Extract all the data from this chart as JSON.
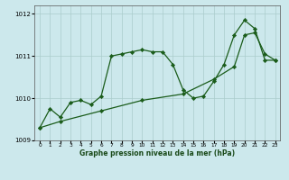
{
  "xlabel": "Graphe pression niveau de la mer (hPa)",
  "background_color": "#cce8ec",
  "grid_color": "#aacccc",
  "line_color": "#1a5c1a",
  "xlim": [
    -0.5,
    23.5
  ],
  "ylim": [
    1009.0,
    1012.2
  ],
  "yticks": [
    1009,
    1010,
    1011,
    1012
  ],
  "xticks": [
    0,
    1,
    2,
    3,
    4,
    5,
    6,
    7,
    8,
    9,
    10,
    11,
    12,
    13,
    14,
    15,
    16,
    17,
    18,
    19,
    20,
    21,
    22,
    23
  ],
  "series1_x": [
    0,
    1,
    2,
    3,
    4,
    5,
    6,
    7,
    8,
    9,
    10,
    11,
    12,
    13,
    14,
    15,
    16,
    17,
    18,
    19,
    20,
    21,
    22,
    23
  ],
  "series1_y": [
    1009.3,
    1009.75,
    1009.55,
    1009.9,
    1009.95,
    1009.85,
    1010.05,
    1011.0,
    1011.05,
    1011.1,
    1011.15,
    1011.1,
    1011.1,
    1010.8,
    1010.2,
    1010.0,
    1010.05,
    1010.4,
    1010.8,
    1011.5,
    1011.85,
    1011.65,
    1010.9,
    1010.9
  ],
  "series2_x": [
    0,
    2,
    6,
    10,
    14,
    17,
    19,
    20,
    21,
    22,
    23
  ],
  "series2_y": [
    1009.3,
    1009.45,
    1009.7,
    1009.95,
    1010.1,
    1010.45,
    1010.75,
    1011.5,
    1011.55,
    1011.05,
    1010.9
  ],
  "figwidth": 3.2,
  "figheight": 2.0,
  "dpi": 100
}
